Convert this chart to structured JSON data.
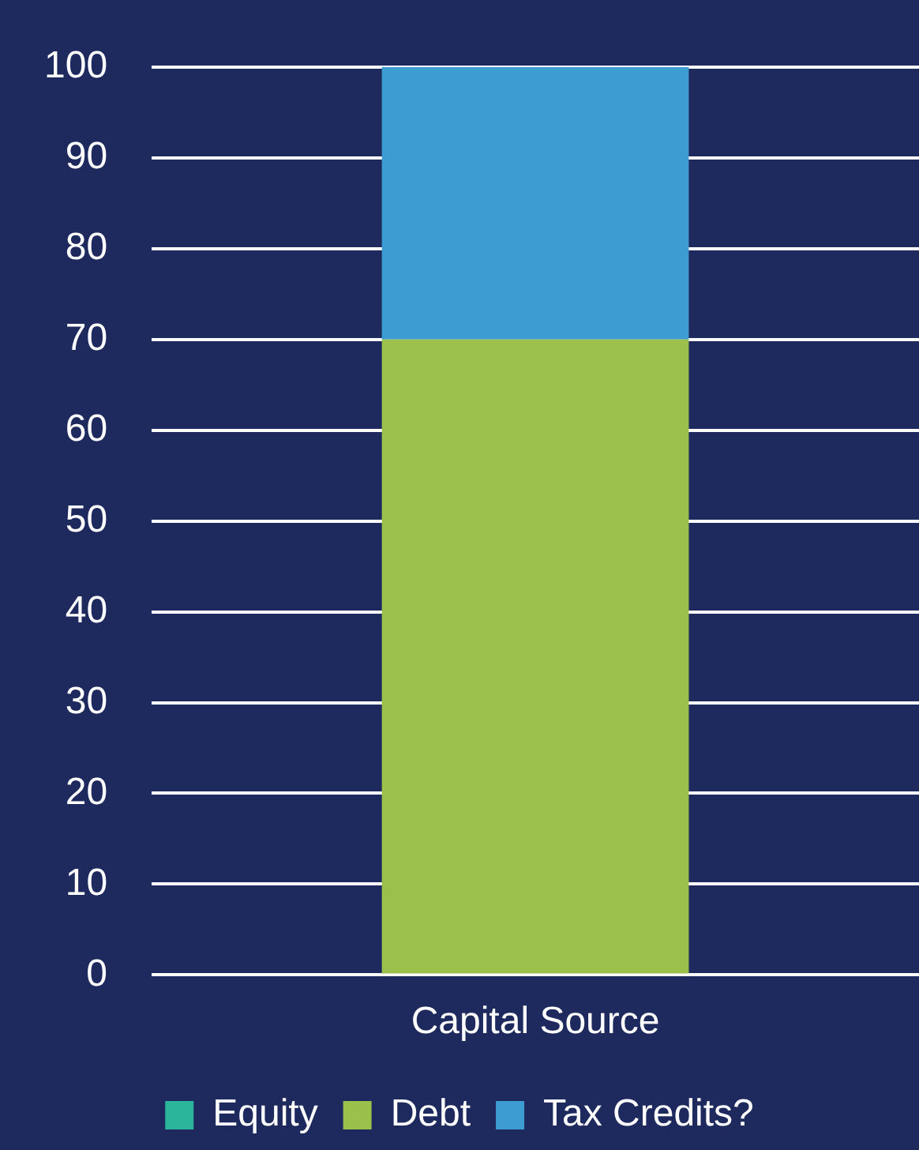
{
  "chart_data": {
    "type": "bar",
    "stacked": true,
    "categories": [
      "Capital Source"
    ],
    "series": [
      {
        "name": "Equity",
        "color": "#2bb59a",
        "values": [
          0
        ]
      },
      {
        "name": "Debt",
        "color": "#9bc04b",
        "values": [
          70
        ]
      },
      {
        "name": "Tax Credits?",
        "color": "#3d9cd2",
        "values": [
          30
        ]
      }
    ],
    "ylim": [
      0,
      100
    ],
    "yticks": [
      0,
      10,
      20,
      30,
      40,
      50,
      60,
      70,
      80,
      90,
      100
    ],
    "grid": "y",
    "legend": "bottom"
  }
}
